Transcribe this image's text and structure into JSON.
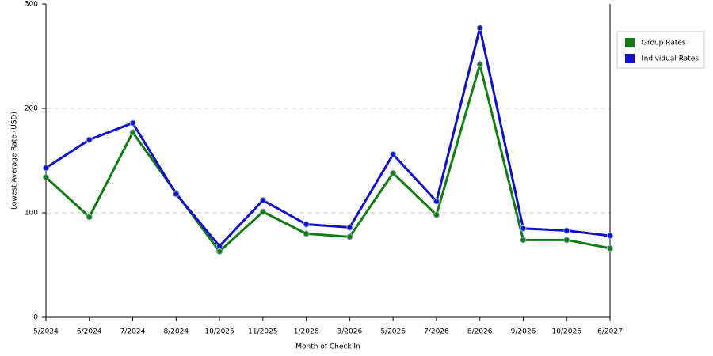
{
  "chart_data": {
    "type": "line",
    "x_label": "Month of Check In",
    "y_label": "Lowest Average Rate (USD)",
    "categories": [
      "5/2024",
      "6/2024",
      "7/2024",
      "8/2024",
      "10/2025",
      "11/2025",
      "1/2026",
      "3/2026",
      "5/2026",
      "7/2026",
      "8/2026",
      "9/2026",
      "10/2026",
      "6/2027"
    ],
    "series": [
      {
        "name": "Group Rates",
        "color": "#137b13",
        "values": [
          134,
          96,
          177,
          119,
          63,
          101,
          80,
          77,
          138,
          98,
          242,
          74,
          74,
          66
        ]
      },
      {
        "name": "Individual Rates",
        "color": "#1010cc",
        "values": [
          143,
          170,
          186,
          118,
          68,
          112,
          89,
          86,
          156,
          111,
          277,
          85,
          83,
          78
        ]
      }
    ],
    "ylim": [
      0,
      300
    ],
    "yticks": [
      0,
      100,
      200,
      300
    ],
    "grid": true,
    "legend": "right"
  }
}
